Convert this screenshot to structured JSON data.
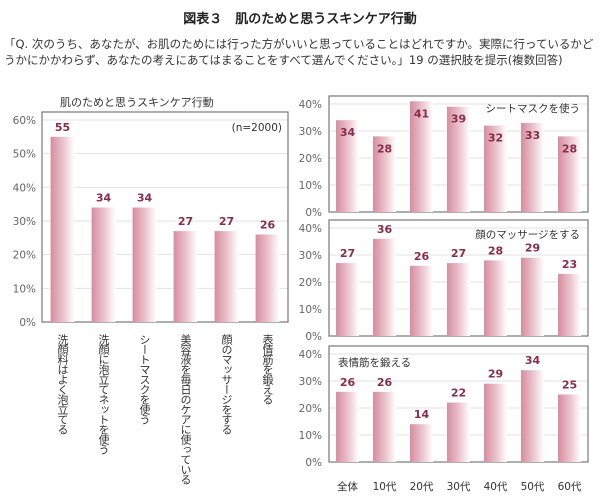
{
  "title": "図表３　肌のためと思うスキンケア行動",
  "question": "「Q. 次のうち、あなたが、お肌のためには行った方がいいと思っていることはどれですか。実際に行っているかどうかにかかわらず、あなたの考えにあてはまることをすべて選んでください。」19 の選択肢を提示(複数回答)",
  "colors": {
    "bar": "#d68c9e",
    "label": "#8a2c4c",
    "frame": "#777777"
  },
  "chart_data": [
    {
      "type": "bar",
      "title": "肌のためと思うスキンケア行動",
      "note": "(n=2000)",
      "categories": [
        "洗顔料はよく泡立てる",
        "洗顔に泡立てネットを使う",
        "シートマスクを使う",
        "美容液を毎日のケアに使っている",
        "顔のマッサージをする",
        "表情筋を鍛える"
      ],
      "values": [
        55,
        34,
        34,
        27,
        27,
        26
      ],
      "yticks": [
        "0%",
        "10%",
        "20%",
        "30%",
        "40%",
        "50%",
        "60%"
      ],
      "ylim": [
        0,
        60
      ]
    },
    {
      "type": "bar",
      "title": "シートマスクを使う",
      "categories": [
        "全体",
        "10代",
        "20代",
        "30代",
        "40代",
        "50代",
        "60代"
      ],
      "values": [
        34,
        28,
        41,
        39,
        32,
        33,
        28
      ],
      "yticks": [
        "0%",
        "10%",
        "20%",
        "30%",
        "40%"
      ],
      "ylim": [
        0,
        40
      ]
    },
    {
      "type": "bar",
      "title": "顔のマッサージをする",
      "categories": [
        "全体",
        "10代",
        "20代",
        "30代",
        "40代",
        "50代",
        "60代"
      ],
      "values": [
        27,
        36,
        26,
        27,
        28,
        29,
        23
      ],
      "yticks": [
        "0%",
        "10%",
        "20%",
        "30%",
        "40%"
      ],
      "ylim": [
        0,
        40
      ]
    },
    {
      "type": "bar",
      "title": "表情筋を鍛える",
      "categories": [
        "全体",
        "10代",
        "20代",
        "30代",
        "40代",
        "50代",
        "60代"
      ],
      "values": [
        26,
        26,
        14,
        22,
        29,
        34,
        25
      ],
      "yticks": [
        "0%",
        "10%",
        "20%",
        "30%",
        "40%"
      ],
      "ylim": [
        0,
        40
      ]
    }
  ]
}
